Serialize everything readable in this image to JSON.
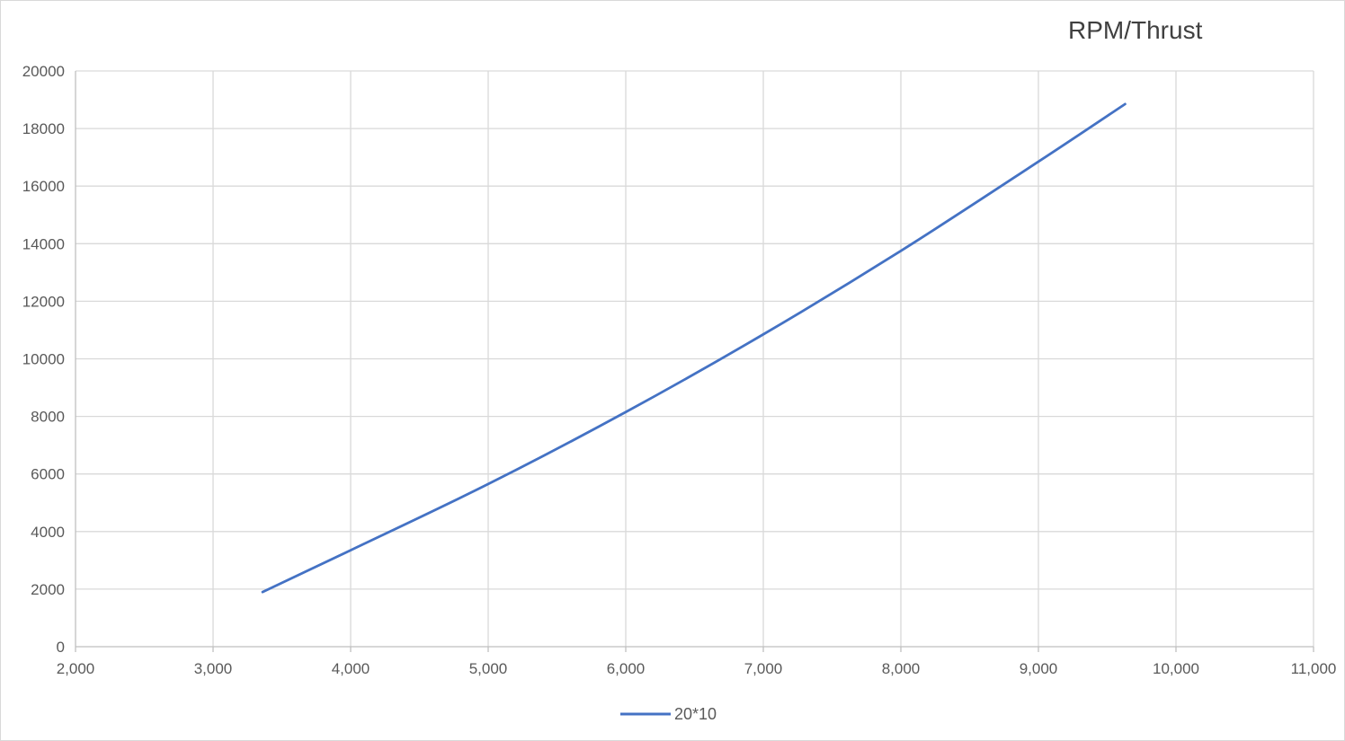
{
  "chart_data": {
    "type": "line",
    "title": "RPM/Thrust",
    "xlabel": "",
    "ylabel": "",
    "xlim": [
      2000,
      11000
    ],
    "ylim": [
      0,
      20000
    ],
    "x_ticks": [
      2000,
      3000,
      4000,
      5000,
      6000,
      7000,
      8000,
      9000,
      10000,
      11000
    ],
    "x_tick_labels": [
      "2,000",
      "3,000",
      "4,000",
      "5,000",
      "6,000",
      "7,000",
      "8,000",
      "9,000",
      "10,000",
      "11,000"
    ],
    "y_ticks": [
      0,
      2000,
      4000,
      6000,
      8000,
      10000,
      12000,
      14000,
      16000,
      18000,
      20000
    ],
    "y_tick_labels": [
      "0",
      "2000",
      "4000",
      "6000",
      "8000",
      "10000",
      "12000",
      "14000",
      "16000",
      "18000",
      "20000"
    ],
    "grid": true,
    "legend": "bottom-center",
    "series": [
      {
        "name": "20*10",
        "color": "#4472c4",
        "x": [
          3360,
          4000,
          5000,
          6000,
          7000,
          8000,
          9000,
          9630
        ],
        "y": [
          1900,
          3350,
          5650,
          8150,
          10850,
          13750,
          16850,
          18850
        ]
      }
    ]
  }
}
